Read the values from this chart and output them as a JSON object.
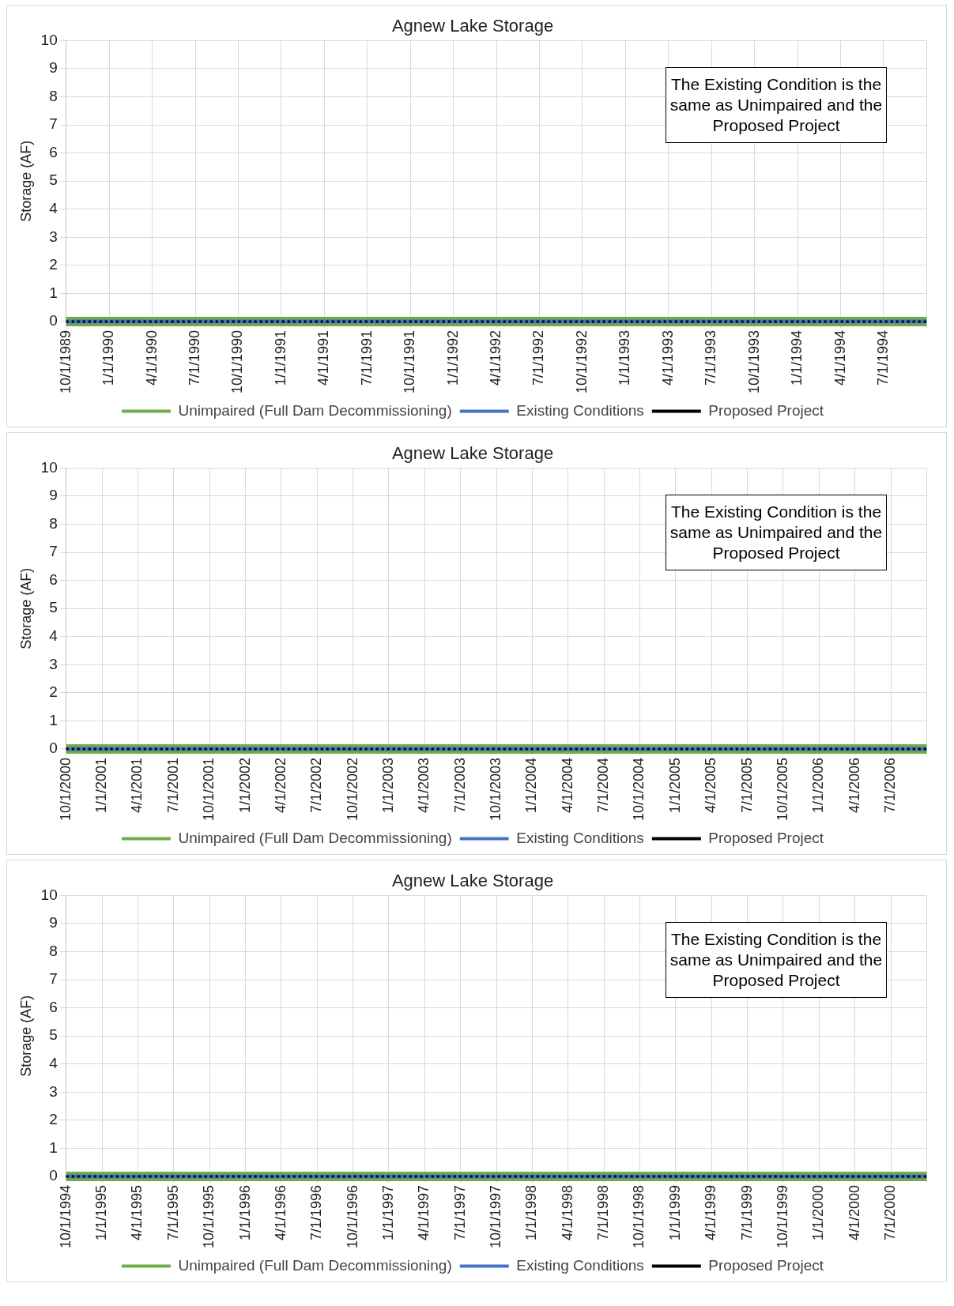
{
  "chart_data": [
    {
      "type": "line",
      "title": "Agnew Lake Storage",
      "ylabel": "Storage (AF)",
      "annotations": [
        "The Existing Condition is the same as Unimpaired and the Proposed Project"
      ],
      "categories": [
        "10/1/1989",
        "1/1/1990",
        "4/1/1990",
        "7/1/1990",
        "10/1/1990",
        "1/1/1991",
        "4/1/1991",
        "7/1/1991",
        "10/1/1991",
        "1/1/1992",
        "4/1/1992",
        "7/1/1992",
        "10/1/1992",
        "1/1/1993",
        "4/1/1993",
        "7/1/1993",
        "10/1/1993",
        "1/1/1994",
        "4/1/1994",
        "7/1/1994",
        null
      ],
      "series": [
        {
          "name": "Unimpaired (Full Dam Decommissioning)",
          "color": "#70ad47",
          "line_style": "solid",
          "values": [
            0,
            0,
            0,
            0,
            0,
            0,
            0,
            0,
            0,
            0,
            0,
            0,
            0,
            0,
            0,
            0,
            0,
            0,
            0,
            0,
            0
          ]
        },
        {
          "name": "Existing Conditions",
          "color": "#4472c4",
          "line_style": "solid",
          "values": [
            0,
            0,
            0,
            0,
            0,
            0,
            0,
            0,
            0,
            0,
            0,
            0,
            0,
            0,
            0,
            0,
            0,
            0,
            0,
            0,
            0
          ]
        },
        {
          "name": "Proposed Project",
          "color": "#000000",
          "line_style": "dotted",
          "values": [
            0,
            0,
            0,
            0,
            0,
            0,
            0,
            0,
            0,
            0,
            0,
            0,
            0,
            0,
            0,
            0,
            0,
            0,
            0,
            0,
            0
          ]
        }
      ],
      "ylim": [
        0,
        10
      ],
      "yticks": [
        0,
        1,
        2,
        3,
        4,
        5,
        6,
        7,
        8,
        9,
        10
      ],
      "grid": true,
      "legend": "bottom",
      "marker": "none"
    },
    {
      "type": "line",
      "title": "Agnew Lake Storage",
      "ylabel": "Storage (AF)",
      "annotations": [
        "The Existing Condition is the same as Unimpaired and the Proposed Project"
      ],
      "categories": [
        "10/1/2000",
        "1/1/2001",
        "4/1/2001",
        "7/1/2001",
        "10/1/2001",
        "1/1/2002",
        "4/1/2002",
        "7/1/2002",
        "10/1/2002",
        "1/1/2003",
        "4/1/2003",
        "7/1/2003",
        "10/1/2003",
        "1/1/2004",
        "4/1/2004",
        "7/1/2004",
        "10/1/2004",
        "1/1/2005",
        "4/1/2005",
        "7/1/2005",
        "10/1/2005",
        "1/1/2006",
        "4/1/2006",
        "7/1/2006",
        null
      ],
      "series": [
        {
          "name": "Unimpaired (Full Dam Decommissioning)",
          "color": "#70ad47",
          "line_style": "solid",
          "values": [
            0,
            0,
            0,
            0,
            0,
            0,
            0,
            0,
            0,
            0,
            0,
            0,
            0,
            0,
            0,
            0,
            0,
            0,
            0,
            0,
            0,
            0,
            0,
            0,
            0
          ]
        },
        {
          "name": "Existing Conditions",
          "color": "#4472c4",
          "line_style": "solid",
          "values": [
            0,
            0,
            0,
            0,
            0,
            0,
            0,
            0,
            0,
            0,
            0,
            0,
            0,
            0,
            0,
            0,
            0,
            0,
            0,
            0,
            0,
            0,
            0,
            0,
            0
          ]
        },
        {
          "name": "Proposed Project",
          "color": "#000000",
          "line_style": "dotted",
          "values": [
            0,
            0,
            0,
            0,
            0,
            0,
            0,
            0,
            0,
            0,
            0,
            0,
            0,
            0,
            0,
            0,
            0,
            0,
            0,
            0,
            0,
            0,
            0,
            0,
            0
          ]
        }
      ],
      "ylim": [
        0,
        10
      ],
      "yticks": [
        0,
        1,
        2,
        3,
        4,
        5,
        6,
        7,
        8,
        9,
        10
      ],
      "grid": true,
      "legend": "bottom",
      "marker": "none"
    },
    {
      "type": "line",
      "title": "Agnew Lake Storage",
      "ylabel": "Storage (AF)",
      "annotations": [
        "The Existing Condition is the same as Unimpaired and the Proposed Project"
      ],
      "categories": [
        "10/1/1994",
        "1/1/1995",
        "4/1/1995",
        "7/1/1995",
        "10/1/1995",
        "1/1/1996",
        "4/1/1996",
        "7/1/1996",
        "10/1/1996",
        "1/1/1997",
        "4/1/1997",
        "7/1/1997",
        "10/1/1997",
        "1/1/1998",
        "4/1/1998",
        "7/1/1998",
        "10/1/1998",
        "1/1/1999",
        "4/1/1999",
        "7/1/1999",
        "10/1/1999",
        "1/1/2000",
        "4/1/2000",
        "7/1/2000",
        null
      ],
      "series": [
        {
          "name": "Unimpaired (Full Dam Decommissioning)",
          "color": "#70ad47",
          "line_style": "solid",
          "values": [
            0,
            0,
            0,
            0,
            0,
            0,
            0,
            0,
            0,
            0,
            0,
            0,
            0,
            0,
            0,
            0,
            0,
            0,
            0,
            0,
            0,
            0,
            0,
            0,
            0
          ]
        },
        {
          "name": "Existing Conditions",
          "color": "#4472c4",
          "line_style": "solid",
          "values": [
            0,
            0,
            0,
            0,
            0,
            0,
            0,
            0,
            0,
            0,
            0,
            0,
            0,
            0,
            0,
            0,
            0,
            0,
            0,
            0,
            0,
            0,
            0,
            0,
            0
          ]
        },
        {
          "name": "Proposed Project",
          "color": "#000000",
          "line_style": "dotted",
          "values": [
            0,
            0,
            0,
            0,
            0,
            0,
            0,
            0,
            0,
            0,
            0,
            0,
            0,
            0,
            0,
            0,
            0,
            0,
            0,
            0,
            0,
            0,
            0,
            0,
            0
          ]
        }
      ],
      "ylim": [
        0,
        10
      ],
      "yticks": [
        0,
        1,
        2,
        3,
        4,
        5,
        6,
        7,
        8,
        9,
        10
      ],
      "grid": true,
      "legend": "bottom",
      "marker": "none"
    }
  ]
}
